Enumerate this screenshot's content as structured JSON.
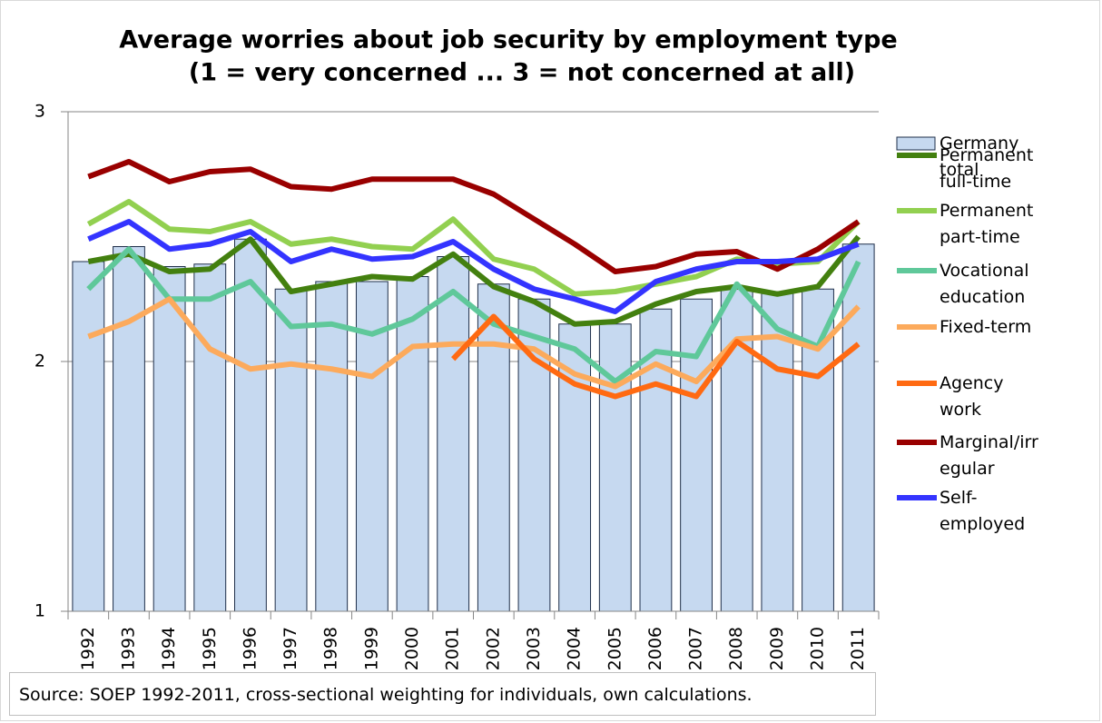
{
  "chart_data": {
    "type": "bar-line",
    "title": "Average worries about job security by employment type",
    "subtitle": "(1 = very concerned ... 3 = not concerned at all)",
    "source": "Source: SOEP 1992-2011, cross-sectional weighting for individuals, own calculations.",
    "categories": [
      "1992",
      "1993",
      "1994",
      "1995",
      "1996",
      "1997",
      "1998",
      "1999",
      "2000",
      "2001",
      "2002",
      "2003",
      "2004",
      "2005",
      "2006",
      "2007",
      "2008",
      "2009",
      "2010",
      "2011"
    ],
    "ylim": [
      1,
      3
    ],
    "yticks": [
      1,
      2,
      3
    ],
    "grid": true,
    "legend": "right",
    "series": [
      {
        "name": "Germany total",
        "type": "bar",
        "color": "#c6d9f0",
        "values": [
          2.4,
          2.46,
          2.38,
          2.39,
          2.49,
          2.29,
          2.32,
          2.32,
          2.34,
          2.42,
          2.31,
          2.25,
          2.15,
          2.15,
          2.21,
          2.25,
          2.29,
          2.28,
          2.29,
          2.47
        ]
      },
      {
        "name": "Permanent full-time",
        "type": "line",
        "color": "#43800f",
        "values": [
          2.4,
          2.43,
          2.36,
          2.37,
          2.49,
          2.28,
          2.31,
          2.34,
          2.33,
          2.43,
          2.3,
          2.24,
          2.15,
          2.16,
          2.23,
          2.28,
          2.3,
          2.27,
          2.3,
          2.5
        ]
      },
      {
        "name": "Permanent part-time",
        "type": "line",
        "color": "#92d050",
        "values": [
          2.55,
          2.64,
          2.53,
          2.52,
          2.56,
          2.47,
          2.49,
          2.46,
          2.45,
          2.57,
          2.41,
          2.37,
          2.27,
          2.28,
          2.31,
          2.34,
          2.41,
          2.39,
          2.4,
          2.56
        ]
      },
      {
        "name": "Vocational education",
        "type": "line",
        "color": "#5fc89a",
        "values": [
          2.29,
          2.45,
          2.25,
          2.25,
          2.32,
          2.14,
          2.15,
          2.11,
          2.17,
          2.28,
          2.15,
          2.1,
          2.05,
          1.92,
          2.04,
          2.02,
          2.31,
          2.13,
          2.06,
          2.4
        ]
      },
      {
        "name": "Fixed-term",
        "type": "line",
        "color": "#fcaa5c",
        "values": [
          2.1,
          2.16,
          2.25,
          2.05,
          1.97,
          1.99,
          1.97,
          1.94,
          2.06,
          2.07,
          2.07,
          2.05,
          1.95,
          1.9,
          1.99,
          1.92,
          2.09,
          2.1,
          2.05,
          2.22
        ]
      },
      {
        "name": "Agency work",
        "type": "line",
        "color": "#ff6a12",
        "values": [
          null,
          null,
          null,
          null,
          null,
          null,
          null,
          null,
          null,
          2.01,
          2.18,
          2.01,
          1.91,
          1.86,
          1.91,
          1.86,
          2.08,
          1.97,
          1.94,
          2.07
        ]
      },
      {
        "name": "Marginal/irregular",
        "type": "line",
        "color": "#990000",
        "values": [
          2.74,
          2.8,
          2.72,
          2.76,
          2.77,
          2.7,
          2.69,
          2.73,
          2.73,
          2.73,
          2.67,
          2.57,
          2.47,
          2.36,
          2.38,
          2.43,
          2.44,
          2.37,
          2.45,
          2.56
        ]
      },
      {
        "name": "Self-employed",
        "type": "line",
        "color": "#3434ff",
        "values": [
          2.49,
          2.56,
          2.45,
          2.47,
          2.52,
          2.4,
          2.45,
          2.41,
          2.42,
          2.48,
          2.37,
          2.29,
          2.25,
          2.2,
          2.32,
          2.37,
          2.4,
          2.4,
          2.41,
          2.47
        ]
      }
    ]
  }
}
